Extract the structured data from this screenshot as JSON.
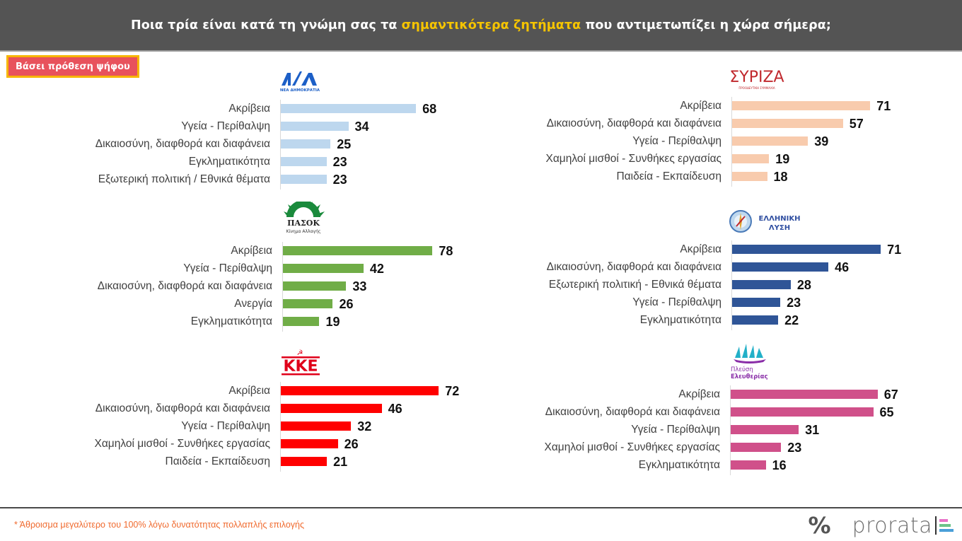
{
  "header": {
    "title_part1": "Ποια τρία είναι κατά τη γνώμη σας τα ",
    "title_highlight": "σημαντικότερα ζητήματα",
    "title_part2": " που αντιμετωπίζει η χώρα σήμερα;"
  },
  "badge": "Βάσει πρόθεση ψήφου",
  "footnote": "* Άθροισμα μεγαλύτερο του 100% λόγω δυνατότητας πολλαπλής επιλογής",
  "brand": {
    "symbol": "%",
    "name": "prorata"
  },
  "chart_data": [
    {
      "type": "bar",
      "orientation": "horizontal",
      "party": "ΝΕΑ ΔΗΜΟΚΡΑΤΙΑ",
      "logo_text": "ΝΔ",
      "logo_sub": "ΝΕΑ ΔΗΜΟΚΡΑΤΙΑ",
      "color": "#bdd7ee",
      "categories": [
        "Ακρίβεια",
        "Υγεία - Περίθαλψη",
        "Δικαιοσύνη, διαφθορά και διαφάνεια",
        "Εγκληματικότητα",
        "Εξωτερική πολιτική / Εθνικά θέματα"
      ],
      "values": [
        68,
        34,
        25,
        23,
        23
      ]
    },
    {
      "type": "bar",
      "orientation": "horizontal",
      "party": "ΣΥΡΙΖΑ",
      "logo_text": "ΣΥΡΙΖΑ",
      "logo_sub": "ΠΡΟΟΔΕΥΤΙΚΗ ΣΥΜΜΑΧΙΑ",
      "color": "#f8cbad",
      "categories": [
        "Ακρίβεια",
        "Δικαιοσύνη, διαφθορά και διαφάνεια",
        "Υγεία - Περίθαλψη",
        "Χαμηλοί μισθοί - Συνθήκες εργασίας",
        "Παιδεία - Εκπαίδευση"
      ],
      "values": [
        71,
        57,
        39,
        19,
        18
      ]
    },
    {
      "type": "bar",
      "orientation": "horizontal",
      "party": "ΠΑΣΟΚ",
      "logo_text": "ΠΑΣΟΚ",
      "logo_sub": "Κίνημα Αλλαγής",
      "color": "#70ad47",
      "categories": [
        "Ακρίβεια",
        "Υγεία - Περίθαλψη",
        "Δικαιοσύνη, διαφθορά και διαφάνεια",
        "Ανεργία",
        "Εγκληματικότητα"
      ],
      "values": [
        78,
        42,
        33,
        26,
        19
      ]
    },
    {
      "type": "bar",
      "orientation": "horizontal",
      "party": "ΕΛΛΗΝΙΚΗ ΛΥΣΗ",
      "logo_text": "ΕΛΛΗΝΙΚΗ",
      "logo_sub": "ΛΥΣΗ",
      "color": "#2f5597",
      "categories": [
        "Ακρίβεια",
        "Δικαιοσύνη, διαφθορά και διαφάνεια",
        "Εξωτερική πολιτική - Εθνικά θέματα",
        "Υγεία - Περίθαλψη",
        "Εγκληματικότητα"
      ],
      "values": [
        71,
        46,
        28,
        23,
        22
      ]
    },
    {
      "type": "bar",
      "orientation": "horizontal",
      "party": "ΚΚΕ",
      "logo_text": "ΚΚΕ",
      "logo_sub": "",
      "color": "#ff0000",
      "categories": [
        "Ακρίβεια",
        "Δικαιοσύνη, διαφθορά και διαφάνεια",
        "Υγεία - Περίθαλψη",
        "Χαμηλοί μισθοί - Συνθήκες εργασίας",
        "Παιδεία - Εκπαίδευση"
      ],
      "values": [
        72,
        46,
        32,
        26,
        21
      ]
    },
    {
      "type": "bar",
      "orientation": "horizontal",
      "party": "Πλεύση Ελευθερίας",
      "logo_text": "Πλεύση",
      "logo_sub": "Ελευθερίας",
      "color": "#d0508a",
      "categories": [
        "Ακρίβεια",
        "Δικαιοσύνη, διαφθορά και διαφάνεια",
        "Υγεία - Περίθαλψη",
        "Χαμηλοί μισθοί - Συνθήκες εργασίας",
        "Εγκληματικότητα"
      ],
      "values": [
        67,
        65,
        31,
        23,
        16
      ]
    }
  ]
}
